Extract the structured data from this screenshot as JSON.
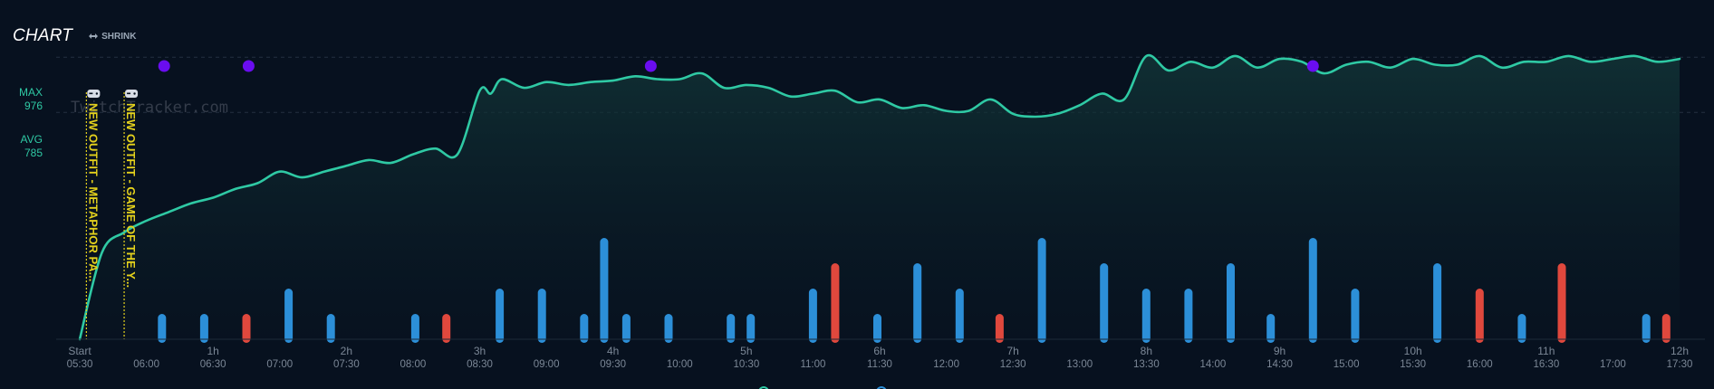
{
  "header": {
    "title": "CHART",
    "shrink_label": "SHRINK"
  },
  "y_markers": {
    "max_label": "MAX",
    "max_value": "976",
    "avg_label": "AVG",
    "avg_value": "785"
  },
  "watermark": "TwitchTracker.com",
  "colors": {
    "background": "#07111f",
    "line": "#2fc9a4",
    "bar_blue": "#2c8fd8",
    "bar_red": "#e0483d",
    "event_dot": "#6a0df0",
    "annotation": "#e5d21c",
    "axis_text": "#7b8796"
  },
  "icons": {
    "shrink": "arrows-horizontal-icon",
    "game_change": "gamepad-icon"
  },
  "chart_data": {
    "type": "line",
    "x_unit": "minutes since stream start",
    "xlim": [
      0,
      720
    ],
    "ylim": [
      0,
      1080
    ],
    "legend": "bottom-center (cut off)",
    "grid": "horizontal dashed lines at MAX and AVG",
    "x_ticks_top": [
      "Start",
      "",
      "1h",
      "",
      "2h",
      "",
      "3h",
      "",
      "4h",
      "",
      "5h",
      "",
      "6h",
      "",
      "7h",
      "",
      "8h",
      "",
      "9h",
      "",
      "10h",
      "",
      "11h",
      "",
      "12h"
    ],
    "x_ticks_bottom": [
      "05:30",
      "06:00",
      "06:30",
      "07:00",
      "07:30",
      "08:00",
      "08:30",
      "09:00",
      "09:30",
      "10:00",
      "10:30",
      "11:00",
      "11:30",
      "12:00",
      "12:30",
      "13:00",
      "13:30",
      "14:00",
      "14:30",
      "15:00",
      "15:30",
      "16:00",
      "16:30",
      "17:00",
      "17:30"
    ],
    "reference_lines": [
      {
        "label": "MAX",
        "value": 976
      },
      {
        "label": "AVG",
        "value": 785
      }
    ],
    "series": [
      {
        "kind": "viewers",
        "x": [
          0,
          10,
          20,
          30,
          40,
          50,
          60,
          70,
          80,
          90,
          100,
          110,
          120,
          130,
          140,
          150,
          160,
          170,
          180,
          185,
          190,
          200,
          210,
          220,
          230,
          240,
          250,
          260,
          270,
          280,
          290,
          300,
          310,
          320,
          330,
          340,
          350,
          360,
          370,
          380,
          390,
          400,
          410,
          420,
          430,
          440,
          450,
          460,
          470,
          480,
          490,
          500,
          510,
          520,
          530,
          540,
          550,
          560,
          570,
          580,
          590,
          600,
          610,
          620,
          630,
          640,
          650,
          660,
          670,
          680,
          690,
          700,
          710,
          720
        ],
        "y": [
          0,
          300,
          370,
          410,
          440,
          470,
          490,
          520,
          540,
          580,
          560,
          580,
          600,
          620,
          610,
          640,
          660,
          640,
          860,
          850,
          900,
          870,
          890,
          880,
          890,
          895,
          910,
          900,
          900,
          920,
          870,
          880,
          870,
          840,
          850,
          860,
          820,
          830,
          800,
          810,
          790,
          790,
          830,
          780,
          770,
          780,
          810,
          850,
          830,
          980,
          930,
          960,
          940,
          980,
          940,
          970,
          960,
          920,
          950,
          960,
          940,
          970,
          950,
          950,
          980,
          940,
          960,
          960,
          980,
          960,
          970,
          980,
          960,
          970
        ]
      }
    ],
    "bar_series": [
      {
        "kind": "chat/activity",
        "x": [
          37,
          56,
          75,
          94,
          113,
          151,
          165,
          189,
          208,
          227,
          236,
          246,
          265,
          293,
          302,
          330,
          340,
          359,
          377,
          396,
          414,
          433,
          461,
          480,
          499,
          518,
          536,
          555,
          574,
          611,
          630,
          649,
          667,
          705,
          714
        ],
        "values": [
          1,
          1,
          1,
          2,
          1,
          1,
          1,
          2,
          2,
          1,
          4,
          1,
          1,
          1,
          1,
          2,
          3,
          1,
          3,
          2,
          1,
          4,
          3,
          2,
          2,
          3,
          1,
          4,
          2,
          3,
          2,
          1,
          3,
          1,
          1
        ],
        "colors": [
          "blue",
          "blue",
          "red",
          "blue",
          "blue",
          "blue",
          "red",
          "blue",
          "blue",
          "blue",
          "blue",
          "blue",
          "blue",
          "blue",
          "blue",
          "blue",
          "red",
          "blue",
          "blue",
          "blue",
          "red",
          "blue",
          "blue",
          "blue",
          "blue",
          "blue",
          "blue",
          "blue",
          "blue",
          "blue",
          "red",
          "blue",
          "red",
          "blue",
          "red"
        ]
      }
    ],
    "event_dots_x": [
      38,
      76,
      257,
      555
    ],
    "annotations": [
      {
        "x": 3,
        "label": "NEW OUTFIT - METAPHOR PA..."
      },
      {
        "x": 20,
        "label": "NEW OUTFIT - GAME OF THE Y..."
      }
    ]
  }
}
